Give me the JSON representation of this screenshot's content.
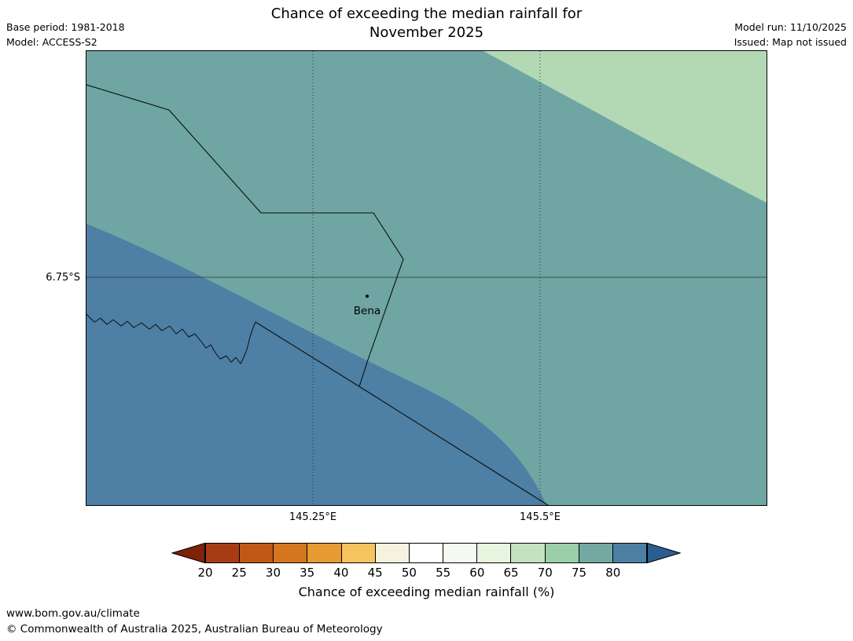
{
  "header": {
    "title_line1": "Chance of exceeding the median rainfall for",
    "title_line2": "November 2025",
    "base_period": "Base period: 1981-2018",
    "model": "Model: ACCESS-S2",
    "model_run": "Model run: 11/10/2025",
    "issued": "Issued: Map not issued"
  },
  "map": {
    "lat_label": "6.75°S",
    "lon_label_1": "145.25°E",
    "lon_label_2": "145.5°E",
    "place_label": "Bena",
    "colors": {
      "region_top_light_green": "#b3d9b4",
      "region_mid_teal": "#6fa5a3",
      "region_bottom_blue": "#4e7fa4",
      "boundary_line": "#0d0d0d"
    }
  },
  "colorbar": {
    "caption": "Chance of exceeding median rainfall (%)",
    "labels": [
      "20",
      "25",
      "30",
      "35",
      "40",
      "45",
      "50",
      "55",
      "60",
      "65",
      "70",
      "75",
      "80"
    ],
    "arrow_left_color": "#7e2209",
    "arrow_right_color": "#2b5e90",
    "segment_colors": [
      "#a63c12",
      "#c05816",
      "#d4761f",
      "#e89a33",
      "#f6c45f",
      "#f6f2e0",
      "#ffffff",
      "#f4faf0",
      "#e7f4e0",
      "#c2e3bd",
      "#9bcfa9",
      "#74a8a3",
      "#4d7fa4"
    ]
  },
  "footer": {
    "url": "www.bom.gov.au/climate",
    "copyright": "© Commonwealth of Australia 2025, Australian Bureau of Meteorology"
  }
}
